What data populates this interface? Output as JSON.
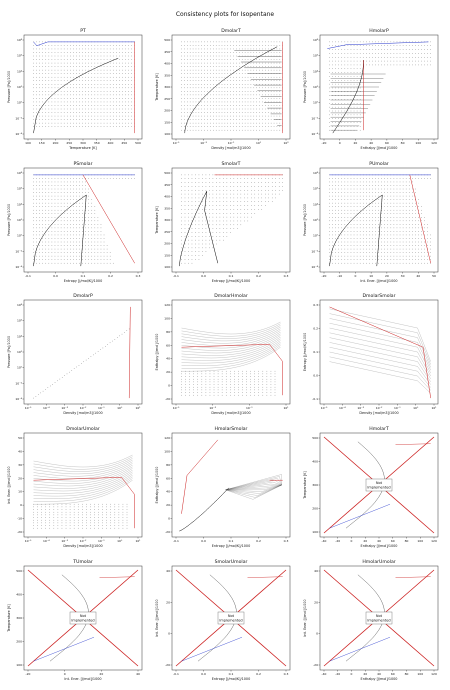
{
  "figure": {
    "title": "Consistency plots for Isopentane"
  },
  "colors": {
    "vapor": "#cc2222",
    "liquid": "#2233cc",
    "curve": "#000000",
    "dots": "#333333",
    "grid_bg": "#ffffff"
  },
  "chart_data": [
    {
      "id": "PT",
      "title": "PT",
      "type": "scatter",
      "xlabel": "Temperature [K]",
      "ylabel": "Pressure [Pa]/1000",
      "xlim": [
        90,
        520
      ],
      "ylog": true,
      "ylim": [
        1e-05,
        100000000
      ],
      "xticks": [
        "100",
        "150",
        "200",
        "250",
        "300",
        "350",
        "400",
        "450",
        "500"
      ],
      "yticks": [
        "10⁻⁴",
        "10⁻²",
        "10⁰",
        "10²",
        "10⁴",
        "10⁶",
        "10⁸"
      ],
      "style": "pt"
    },
    {
      "id": "DmolarT",
      "title": "DmolarT",
      "type": "scatter",
      "xlabel": "Density [mol/m3]/1000",
      "ylabel": "Temperature [K]",
      "xlog": true,
      "xlim": [
        1e-05,
        20
      ],
      "ylim": [
        90,
        520
      ],
      "xticks": [
        "10⁻⁵",
        "10⁻³",
        "10⁻¹",
        "10¹",
        "10³"
      ],
      "yticks": [
        "100",
        "150",
        "200",
        "250",
        "300",
        "350",
        "400",
        "450",
        "500"
      ],
      "style": "dt"
    },
    {
      "id": "HmolarP",
      "title": "HmolarP",
      "type": "scatter",
      "xlabel": "Enthalpy [J/mol]/1000",
      "ylabel": "Pressure [Pa]/1000",
      "xlim": [
        -30,
        125
      ],
      "ylog": true,
      "ylim": [
        1e-05,
        100000000
      ],
      "xticks": [
        "-20",
        "0",
        "20",
        "40",
        "60",
        "80",
        "100",
        "120"
      ],
      "yticks": [
        "10⁻⁴",
        "10⁻²",
        "10⁰",
        "10²",
        "10⁴",
        "10⁶",
        "10⁸"
      ],
      "style": "hp"
    },
    {
      "id": "PSmolar",
      "title": "PSmolar",
      "type": "scatter",
      "xlabel": "Entropy [J/mol/K]/1000",
      "ylabel": "Pressure [Pa]/1000",
      "xlim": [
        -0.15,
        0.35
      ],
      "ylog": true,
      "ylim": [
        1e-05,
        100000000
      ],
      "xticks": [
        "-0.1",
        "0.0",
        "0.1",
        "0.2",
        "0.3"
      ],
      "yticks": [
        "10⁻⁴",
        "10⁻²",
        "10⁰",
        "10²",
        "10⁴",
        "10⁶",
        "10⁸"
      ],
      "style": "ps"
    },
    {
      "id": "SmolarT",
      "title": "SmolarT",
      "type": "scatter",
      "xlabel": "Entropy [J/mol/K]/1000",
      "ylabel": "Temperature [K]",
      "xlim": [
        -0.15,
        0.35
      ],
      "ylim": [
        90,
        520
      ],
      "xticks": [
        "-0.1",
        "0.0",
        "0.1",
        "0.2",
        "0.3"
      ],
      "yticks": [
        "100",
        "150",
        "200",
        "250",
        "300",
        "350",
        "400",
        "450",
        "500"
      ],
      "style": "st"
    },
    {
      "id": "PUmolar",
      "title": "PUmolar",
      "type": "scatter",
      "xlabel": "Int. Ener. [J/mol]/1000",
      "ylabel": "Pressure [Pa]/1000",
      "xlim": [
        -30,
        55
      ],
      "ylog": true,
      "ylim": [
        1e-05,
        100000000
      ],
      "xticks": [
        "-20",
        "-10",
        "0",
        "10",
        "20",
        "30",
        "40",
        "50"
      ],
      "yticks": [
        "10⁻⁴",
        "10⁻²",
        "10⁰",
        "10²",
        "10⁴",
        "10⁶",
        "10⁸"
      ],
      "style": "pu"
    },
    {
      "id": "DmolarP",
      "title": "DmolarP",
      "type": "scatter",
      "xlabel": "Density [mol/m3]/1000",
      "ylabel": "Pressure [Pa]/1000",
      "xlog": true,
      "xlim": [
        1e-05,
        20
      ],
      "ylog": true,
      "ylim": [
        1e-05,
        100000000
      ],
      "xticks": [
        "10⁻⁵",
        "10⁻⁴",
        "10⁻³",
        "10⁻²",
        "10⁻¹",
        "10⁰",
        "10¹"
      ],
      "yticks": [
        "10⁻⁴",
        "10⁻²",
        "10⁰",
        "10²",
        "10⁴",
        "10⁶",
        "10⁸"
      ],
      "style": "dp"
    },
    {
      "id": "DmolarHmolar",
      "title": "DmolarHmolar",
      "type": "scatter",
      "xlabel": "Density [mol/m3]/1000",
      "ylabel": "Enthalpy [J/mol]/1000",
      "xlog": true,
      "xlim": [
        1e-05,
        20
      ],
      "ylim": [
        -30,
        125
      ],
      "xticks": [
        "10⁻⁵",
        "10⁻³",
        "10⁻¹",
        "10¹"
      ],
      "yticks": [
        "-20",
        "0",
        "20",
        "40",
        "60",
        "80",
        "100",
        "120"
      ],
      "style": "dh"
    },
    {
      "id": "DmolarSmolar",
      "title": "DmolarSmolar",
      "type": "scatter",
      "xlabel": "Density [mol/m3]/1000",
      "ylabel": "Entropy [J/mol/K]/1000",
      "xlog": true,
      "xlim": [
        1e-05,
        20
      ],
      "ylim": [
        -0.15,
        0.35
      ],
      "xticks": [
        "10⁻⁵",
        "10⁻⁴",
        "10⁻³",
        "10⁻²",
        "10⁻¹",
        "10⁰",
        "10¹"
      ],
      "yticks": [
        "-0.1",
        "0.0",
        "0.1",
        "0.2",
        "0.3"
      ],
      "style": "ds"
    },
    {
      "id": "DmolarUmolar",
      "title": "DmolarUmolar",
      "type": "scatter",
      "xlabel": "Density [mol/m3]/1000",
      "ylabel": "Int. Ener. [J/mol]/1000",
      "xlog": true,
      "xlim": [
        1e-05,
        20
      ],
      "ylim": [
        -30,
        55
      ],
      "xticks": [
        "10⁻⁵",
        "10⁻⁴",
        "10⁻³",
        "10⁻²",
        "10⁻¹",
        "10⁰",
        "10¹"
      ],
      "yticks": [
        "-20",
        "-10",
        "0",
        "10",
        "20",
        "30",
        "40",
        "50"
      ],
      "style": "du"
    },
    {
      "id": "HmolarSmolar",
      "title": "HmolarSmolar",
      "type": "scatter",
      "xlabel": "Entropy [J/mol/K]/1000",
      "ylabel": "Enthalpy [J/mol]/1000",
      "xlim": [
        -0.15,
        0.35
      ],
      "ylim": [
        -30,
        125
      ],
      "xticks": [
        "-0.1",
        "0.0",
        "0.1",
        "0.2",
        "0.3"
      ],
      "yticks": [
        "-20",
        "0",
        "20",
        "40",
        "60",
        "80",
        "100",
        "120"
      ],
      "style": "hs"
    },
    {
      "id": "HmolarT",
      "title": "HmolarT",
      "type": "scatter",
      "xlabel": "Enthalpy [J/mol]/1000",
      "ylabel": "Temperature [K]",
      "xlim": [
        -40,
        125
      ],
      "ylim": [
        90,
        520
      ],
      "xticks": [
        "-40",
        "-20",
        "0",
        "20",
        "40",
        "60",
        "80",
        "100",
        "120"
      ],
      "yticks": [
        "100",
        "200",
        "300",
        "400",
        "500"
      ],
      "style": "ni",
      "annotation": "Not\nImplemented"
    },
    {
      "id": "TUmolar",
      "title": "TUmolar",
      "type": "scatter",
      "xlabel": "Int. Ener. [J/mol]/1000",
      "ylabel": "Temperature [K]",
      "xlim": [
        -30,
        55
      ],
      "ylim": [
        90,
        520
      ],
      "xticks": [
        "-20",
        "0",
        "20",
        "40"
      ],
      "yticks": [
        "100",
        "200",
        "300",
        "400",
        "500"
      ],
      "style": "ni",
      "annotation": "Not\nImplemented"
    },
    {
      "id": "SmolarUmolar",
      "title": "SmolarUmolar",
      "type": "scatter",
      "xlabel": "Entropy [J/mol/K]/1000",
      "ylabel": "Int. Ener. [J/mol]/1000",
      "xlim": [
        -0.15,
        0.35
      ],
      "ylim": [
        -30,
        55
      ],
      "xticks": [
        "-0.1",
        "0.0",
        "0.1",
        "0.2",
        "0.3"
      ],
      "yticks": [
        "-20",
        "0",
        "20",
        "40"
      ],
      "style": "ni",
      "annotation": "Not\nImplemented"
    },
    {
      "id": "HmolarUmolar",
      "title": "HmolarUmolar",
      "type": "scatter",
      "xlabel": "Enthalpy [J/mol]/1000",
      "ylabel": "Int. Ener. [J/mol]/1000",
      "xlim": [
        -40,
        125
      ],
      "ylim": [
        -30,
        55
      ],
      "xticks": [
        "-40",
        "-20",
        "0",
        "20",
        "40",
        "60",
        "80",
        "100",
        "120"
      ],
      "yticks": [
        "-20",
        "0",
        "20",
        "40"
      ],
      "style": "ni",
      "annotation": "Not\nImplemented"
    }
  ]
}
